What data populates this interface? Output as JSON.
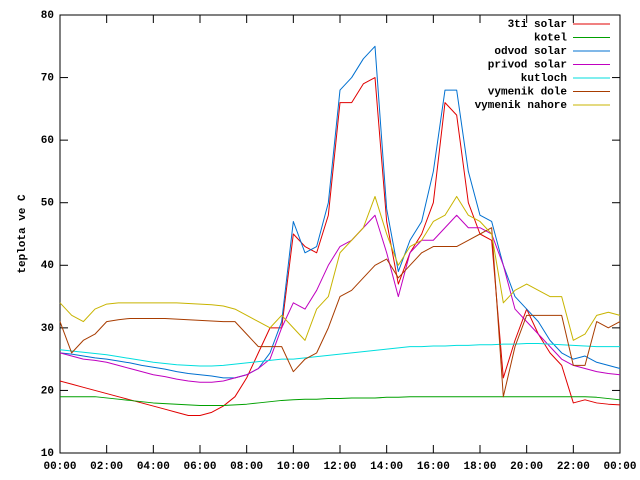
{
  "chart_data": {
    "type": "line",
    "ylabel": "teplota ve C",
    "x": [
      0,
      0.5,
      1,
      1.5,
      2,
      2.5,
      3,
      3.5,
      4,
      4.5,
      5,
      5.5,
      6,
      6.5,
      7,
      7.5,
      8,
      8.5,
      9,
      9.5,
      10,
      10.5,
      11,
      11.5,
      12,
      12.5,
      13,
      13.5,
      14,
      14.5,
      15,
      15.5,
      16,
      16.5,
      17,
      17.5,
      18,
      18.5,
      19,
      19.5,
      20,
      20.5,
      21,
      21.5,
      22,
      22.5,
      23,
      23.5,
      24
    ],
    "xlim": [
      0,
      24
    ],
    "xticks": [
      {
        "value": 0,
        "label": "00:00"
      },
      {
        "value": 2,
        "label": "02:00"
      },
      {
        "value": 4,
        "label": "04:00"
      },
      {
        "value": 6,
        "label": "06:00"
      },
      {
        "value": 8,
        "label": "08:00"
      },
      {
        "value": 10,
        "label": "10:00"
      },
      {
        "value": 12,
        "label": "12:00"
      },
      {
        "value": 14,
        "label": "14:00"
      },
      {
        "value": 16,
        "label": "16:00"
      },
      {
        "value": 18,
        "label": "18:00"
      },
      {
        "value": 20,
        "label": "20:00"
      },
      {
        "value": 22,
        "label": "22:00"
      },
      {
        "value": 24,
        "label": "00:00"
      }
    ],
    "ylim": [
      10,
      80
    ],
    "yticks": [
      10,
      20,
      30,
      40,
      50,
      60,
      70,
      80
    ],
    "legend": "top-right",
    "series": [
      {
        "name": "3ti solar",
        "color": "#e00000",
        "values": [
          21.5,
          21,
          20.5,
          20,
          19.5,
          19,
          18.5,
          18,
          17.5,
          17,
          16.5,
          16,
          16,
          16.5,
          17.5,
          19,
          22,
          26,
          30,
          30,
          45,
          43,
          42,
          48,
          66,
          66,
          69,
          70,
          47,
          37,
          42,
          45,
          50,
          66,
          64,
          50,
          45,
          44,
          22,
          28,
          33,
          29,
          26,
          24,
          18,
          18.5,
          18,
          17.8,
          17.7
        ]
      },
      {
        "name": "kotel",
        "color": "#00a000",
        "values": [
          19,
          19,
          19,
          19,
          18.8,
          18.6,
          18.4,
          18.2,
          18,
          17.9,
          17.8,
          17.7,
          17.6,
          17.6,
          17.6,
          17.7,
          17.8,
          18,
          18.2,
          18.4,
          18.5,
          18.6,
          18.6,
          18.7,
          18.7,
          18.8,
          18.8,
          18.8,
          18.9,
          18.9,
          19,
          19,
          19,
          19,
          19,
          19,
          19,
          19,
          19,
          19,
          19,
          19,
          19,
          19,
          19,
          19,
          18.9,
          18.7,
          18.5
        ]
      },
      {
        "name": "odvod solar",
        "color": "#0070d0",
        "values": [
          26,
          25.8,
          25.5,
          25.2,
          25,
          24.7,
          24.4,
          24,
          23.7,
          23.4,
          23,
          22.7,
          22.5,
          22.3,
          22,
          22,
          22.5,
          23.5,
          26,
          31,
          47,
          42,
          43,
          50,
          68,
          70,
          73,
          75,
          49,
          39,
          44,
          47,
          55,
          68,
          68,
          55,
          48,
          47,
          40,
          35,
          33,
          31,
          28,
          26,
          25,
          25.5,
          24.5,
          24,
          23.5
        ]
      },
      {
        "name": "privod solar",
        "color": "#c000c0",
        "values": [
          26,
          25.5,
          25,
          24.8,
          24.5,
          24,
          23.5,
          23,
          22.5,
          22.2,
          21.8,
          21.5,
          21.3,
          21.3,
          21.5,
          22,
          22.5,
          23.5,
          25,
          30,
          34,
          33,
          36,
          40,
          43,
          44,
          46,
          48,
          42,
          35,
          42,
          44,
          44,
          46,
          48,
          46,
          46,
          45,
          40,
          33,
          31,
          29,
          27,
          25,
          24,
          23.5,
          23,
          22.7,
          22.5
        ]
      },
      {
        "name": "kutloch",
        "color": "#00dede",
        "values": [
          26.5,
          26.3,
          26.1,
          25.9,
          25.7,
          25.4,
          25.1,
          24.8,
          24.5,
          24.3,
          24.1,
          24,
          23.9,
          23.9,
          24,
          24.2,
          24.4,
          24.6,
          24.8,
          25,
          25,
          25.2,
          25.4,
          25.6,
          25.8,
          26,
          26.2,
          26.4,
          26.6,
          26.8,
          27,
          27,
          27.1,
          27.1,
          27.2,
          27.2,
          27.3,
          27.3,
          27.4,
          27.4,
          27.5,
          27.5,
          27.4,
          27.3,
          27.2,
          27.1,
          27,
          27,
          27
        ]
      },
      {
        "name": "vymenik dole",
        "color": "#a83c00",
        "values": [
          31,
          26,
          28,
          29,
          31,
          31.3,
          31.5,
          31.5,
          31.5,
          31.5,
          31.4,
          31.3,
          31.2,
          31.1,
          31,
          31,
          29,
          27,
          27,
          27,
          23,
          25,
          26,
          30,
          35,
          36,
          38,
          40,
          41,
          38,
          40,
          42,
          43,
          43,
          43,
          44,
          45,
          46,
          19,
          27,
          32,
          32,
          32,
          32,
          24,
          24,
          31,
          30,
          31
        ]
      },
      {
        "name": "vymenik nahore",
        "color": "#c8b400",
        "values": [
          34,
          32,
          31,
          33,
          33.8,
          34,
          34,
          34,
          34,
          34,
          34,
          33.9,
          33.8,
          33.7,
          33.5,
          33,
          32,
          31,
          30,
          32,
          30,
          28,
          33,
          35,
          42,
          44,
          46,
          51,
          45,
          40,
          43,
          44,
          47,
          48,
          51,
          48,
          47,
          45,
          34,
          36,
          37,
          36,
          35,
          35,
          28,
          29,
          32,
          32.5,
          32
        ]
      }
    ]
  }
}
